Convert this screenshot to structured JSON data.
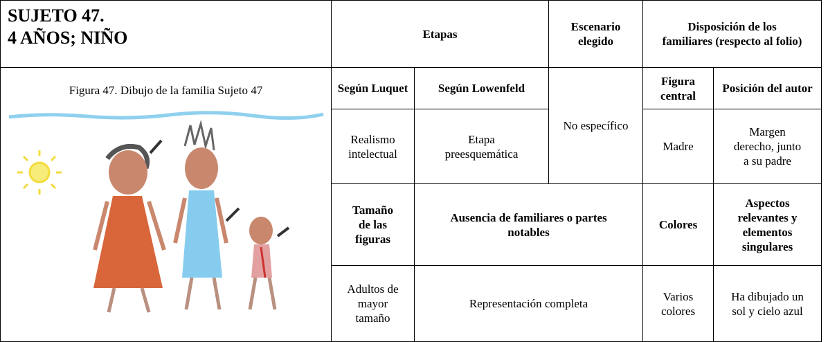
{
  "header": {
    "title_line1": "SUJETO 47.",
    "title_line2": "4 AÑOS; NIÑO"
  },
  "figure": {
    "caption": "Figura 47. Dibujo de la familia Sujeto 47"
  },
  "table": {
    "rows": [
      [
        "Etapas",
        "Escenario elegido",
        "Disposición de los familiares (respecto al folio)"
      ],
      [
        "Según Luquet",
        "Según Lowenfeld",
        "No específico",
        "Figura central",
        "Posición del autor"
      ],
      [
        "Realismo intelectual",
        "Etapa preesquemática",
        "Madre",
        "Margen derecho, junto a su padre"
      ],
      [
        "Tamaño de las figuras",
        "Ausencia de familiares o partes notables",
        "Colores",
        "Aspectos relevantes y elementos singulares"
      ],
      [
        "Adultos de mayor tamaño",
        "Representación completa",
        "Varios colores",
        "Ha dibujado un sol y cielo azul"
      ]
    ]
  }
}
